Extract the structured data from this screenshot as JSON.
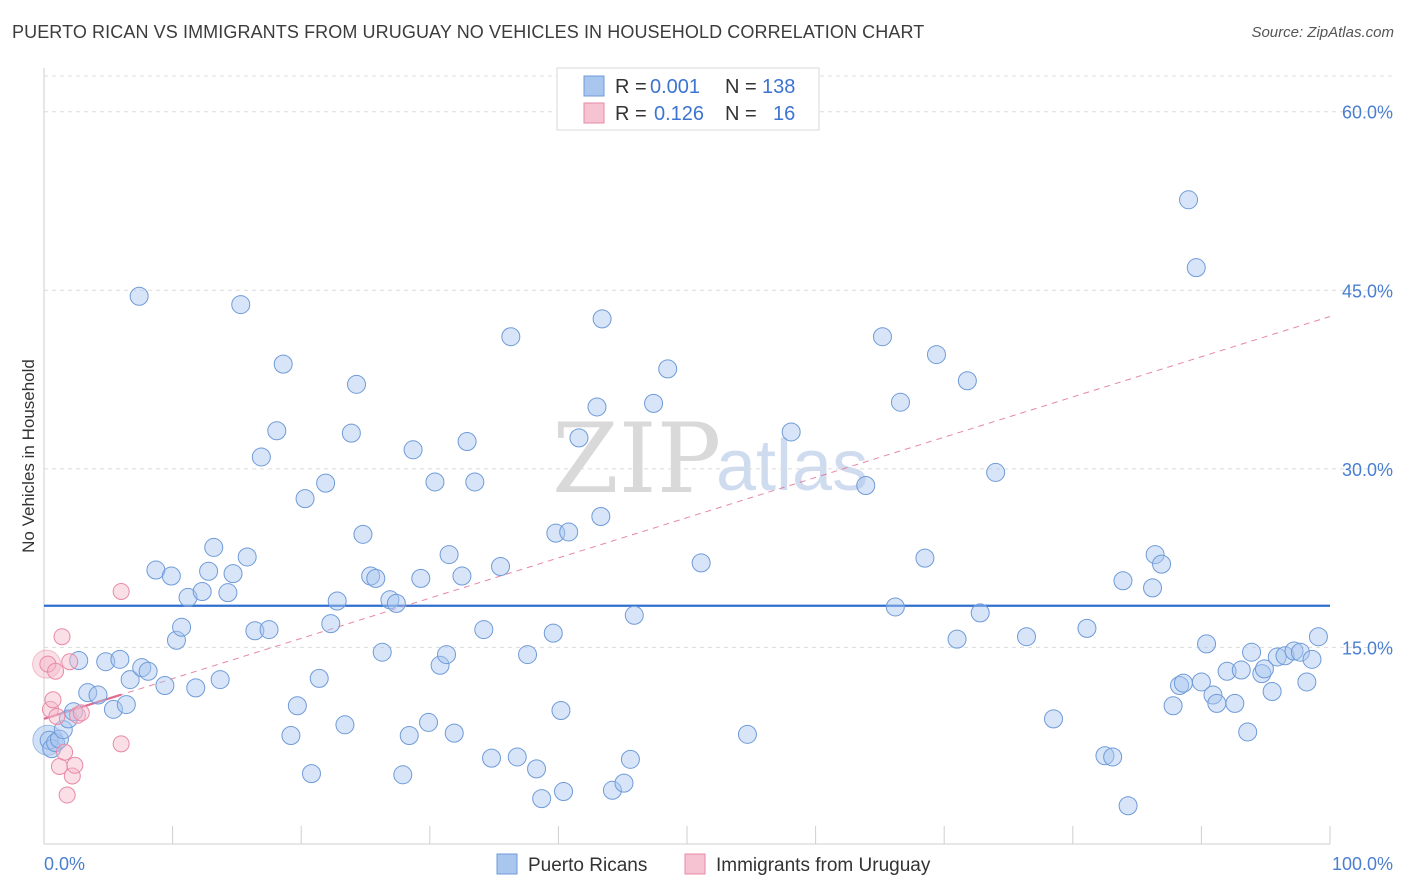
{
  "header": {
    "title": "PUERTO RICAN VS IMMIGRANTS FROM URUGUAY NO VEHICLES IN HOUSEHOLD CORRELATION CHART",
    "source": "Source: ZipAtlas.com"
  },
  "watermark": {
    "zip": "ZIP",
    "atlas": "atlas"
  },
  "legend": {
    "row1": {
      "r_label": "R =",
      "r_value": "0.001",
      "n_label": "N =",
      "n_value": "138"
    },
    "row2": {
      "r_label": "R =",
      "r_value": "0.126",
      "n_label": "N =",
      "n_value": "16"
    }
  },
  "colors": {
    "blue_fill": "#a9c6ef",
    "blue_stroke": "#6f9bd8",
    "blue_line": "#2f6fcf",
    "pink_fill": "#f5b8ca",
    "pink_stroke": "#e88aa6",
    "pink_line": "#e06a92",
    "grid": "#dcdcdc",
    "tick_label": "#4a7fd0"
  },
  "chart_data": {
    "type": "scatter",
    "title": "PUERTO RICAN VS IMMIGRANTS FROM URUGUAY NO VEHICLES IN HOUSEHOLD CORRELATION CHART",
    "xlabel": "",
    "ylabel": "No Vehicles in Household",
    "xlim": [
      0,
      100
    ],
    "ylim": [
      0,
      63
    ],
    "x_tick_labels": [
      "0.0%",
      "100.0%"
    ],
    "y_ticks": [
      15,
      30,
      45,
      60
    ],
    "y_tick_labels": [
      "15.0%",
      "30.0%",
      "45.0%",
      "60.0%"
    ],
    "legend_position": "top-center",
    "series": [
      {
        "name": "Puerto Ricans",
        "color": "#a9c6ef",
        "R": 0.001,
        "N": 138,
        "trend": {
          "x": [
            0,
            100
          ],
          "y": [
            18.5,
            18.5
          ],
          "style": "solid"
        },
        "points": [
          [
            0.4,
            7.2
          ],
          [
            0.6,
            6.5
          ],
          [
            0.9,
            7.0
          ],
          [
            1.2,
            7.3
          ],
          [
            1.5,
            8.1
          ],
          [
            1.9,
            9.0
          ],
          [
            2.3,
            9.6
          ],
          [
            2.7,
            13.9
          ],
          [
            3.4,
            11.2
          ],
          [
            4.2,
            11.0
          ],
          [
            4.8,
            13.8
          ],
          [
            5.4,
            9.8
          ],
          [
            5.9,
            14.0
          ],
          [
            6.4,
            10.2
          ],
          [
            6.7,
            12.3
          ],
          [
            7.6,
            13.3
          ],
          [
            8.1,
            13.0
          ],
          [
            7.4,
            44.5
          ],
          [
            8.7,
            21.5
          ],
          [
            9.4,
            11.8
          ],
          [
            9.9,
            21.0
          ],
          [
            10.3,
            15.6
          ],
          [
            10.7,
            16.7
          ],
          [
            11.2,
            19.2
          ],
          [
            11.8,
            11.6
          ],
          [
            12.3,
            19.7
          ],
          [
            12.8,
            21.4
          ],
          [
            13.2,
            23.4
          ],
          [
            13.7,
            12.3
          ],
          [
            14.3,
            19.6
          ],
          [
            14.7,
            21.2
          ],
          [
            15.3,
            43.8
          ],
          [
            15.8,
            22.6
          ],
          [
            16.4,
            16.4
          ],
          [
            16.9,
            31.0
          ],
          [
            17.5,
            16.5
          ],
          [
            18.1,
            33.2
          ],
          [
            18.6,
            38.8
          ],
          [
            19.2,
            7.6
          ],
          [
            19.7,
            10.1
          ],
          [
            20.3,
            27.5
          ],
          [
            20.8,
            4.4
          ],
          [
            21.4,
            12.4
          ],
          [
            21.9,
            28.8
          ],
          [
            22.3,
            17.0
          ],
          [
            22.8,
            18.9
          ],
          [
            23.4,
            8.5
          ],
          [
            23.9,
            33.0
          ],
          [
            24.3,
            37.1
          ],
          [
            24.8,
            24.5
          ],
          [
            25.4,
            21.0
          ],
          [
            25.8,
            20.8
          ],
          [
            26.3,
            14.6
          ],
          [
            26.9,
            19.0
          ],
          [
            27.4,
            18.7
          ],
          [
            27.9,
            4.3
          ],
          [
            28.4,
            7.6
          ],
          [
            28.7,
            31.6
          ],
          [
            29.3,
            20.8
          ],
          [
            29.9,
            8.7
          ],
          [
            30.4,
            28.9
          ],
          [
            30.8,
            13.5
          ],
          [
            31.3,
            14.4
          ],
          [
            31.5,
            22.8
          ],
          [
            31.9,
            7.8
          ],
          [
            32.5,
            21.0
          ],
          [
            32.9,
            32.3
          ],
          [
            33.5,
            28.9
          ],
          [
            34.2,
            16.5
          ],
          [
            34.8,
            5.7
          ],
          [
            35.5,
            21.8
          ],
          [
            36.3,
            41.1
          ],
          [
            36.8,
            5.8
          ],
          [
            37.6,
            14.4
          ],
          [
            38.3,
            4.8
          ],
          [
            38.7,
            2.3
          ],
          [
            39.6,
            16.2
          ],
          [
            39.8,
            24.6
          ],
          [
            40.2,
            9.7
          ],
          [
            40.4,
            2.9
          ],
          [
            40.8,
            24.7
          ],
          [
            41.6,
            32.6
          ],
          [
            43.0,
            35.2
          ],
          [
            43.3,
            26.0
          ],
          [
            43.4,
            42.6
          ],
          [
            44.2,
            3.0
          ],
          [
            45.1,
            3.6
          ],
          [
            45.6,
            5.6
          ],
          [
            45.9,
            17.7
          ],
          [
            47.4,
            35.5
          ],
          [
            48.5,
            38.4
          ],
          [
            51.1,
            22.1
          ],
          [
            54.7,
            7.7
          ],
          [
            58.1,
            33.1
          ],
          [
            63.9,
            28.6
          ],
          [
            65.2,
            41.1
          ],
          [
            66.2,
            18.4
          ],
          [
            66.6,
            35.6
          ],
          [
            68.5,
            22.5
          ],
          [
            69.4,
            39.6
          ],
          [
            71.0,
            15.7
          ],
          [
            71.8,
            37.4
          ],
          [
            72.8,
            17.9
          ],
          [
            74.0,
            29.7
          ],
          [
            76.4,
            15.9
          ],
          [
            78.5,
            9.0
          ],
          [
            81.1,
            16.6
          ],
          [
            82.5,
            5.9
          ],
          [
            83.1,
            5.8
          ],
          [
            83.9,
            20.6
          ],
          [
            84.3,
            1.7
          ],
          [
            86.2,
            20.0
          ],
          [
            86.4,
            22.8
          ],
          [
            86.9,
            22.0
          ],
          [
            87.8,
            10.1
          ],
          [
            88.3,
            11.8
          ],
          [
            88.6,
            12.0
          ],
          [
            89.0,
            52.6
          ],
          [
            89.6,
            46.9
          ],
          [
            90.0,
            12.1
          ],
          [
            90.4,
            15.3
          ],
          [
            90.9,
            11.0
          ],
          [
            91.2,
            10.3
          ],
          [
            92.0,
            13.0
          ],
          [
            92.6,
            10.3
          ],
          [
            93.1,
            13.1
          ],
          [
            93.6,
            7.9
          ],
          [
            93.9,
            14.6
          ],
          [
            94.7,
            12.8
          ],
          [
            94.9,
            13.2
          ],
          [
            95.5,
            11.3
          ],
          [
            95.9,
            14.2
          ],
          [
            96.5,
            14.3
          ],
          [
            97.2,
            14.7
          ],
          [
            97.7,
            14.6
          ],
          [
            98.2,
            12.1
          ],
          [
            98.6,
            14.0
          ],
          [
            99.1,
            15.9
          ]
        ]
      },
      {
        "name": "Immigrants from Uruguay",
        "color": "#f5b8ca",
        "R": 0.126,
        "N": 16,
        "trend": {
          "x": [
            0,
            100
          ],
          "y": [
            9.0,
            42.8
          ],
          "style": "dashed",
          "solid_until_x": 6.0
        },
        "points": [
          [
            0.3,
            13.6
          ],
          [
            0.5,
            9.8
          ],
          [
            0.7,
            10.6
          ],
          [
            0.9,
            13.0
          ],
          [
            1.0,
            9.2
          ],
          [
            1.2,
            5.0
          ],
          [
            1.4,
            15.9
          ],
          [
            1.6,
            6.2
          ],
          [
            1.8,
            2.6
          ],
          [
            2.0,
            13.8
          ],
          [
            2.2,
            4.2
          ],
          [
            2.4,
            5.1
          ],
          [
            2.6,
            9.3
          ],
          [
            2.9,
            9.5
          ],
          [
            6.0,
            6.9
          ],
          [
            6.0,
            19.7
          ]
        ]
      }
    ]
  },
  "bottom_legend": {
    "series1": "Puerto Ricans",
    "series2": "Immigrants from Uruguay"
  },
  "axis": {
    "ylabel": "No Vehicles in Household",
    "x_left": "0.0%",
    "x_right": "100.0%"
  }
}
